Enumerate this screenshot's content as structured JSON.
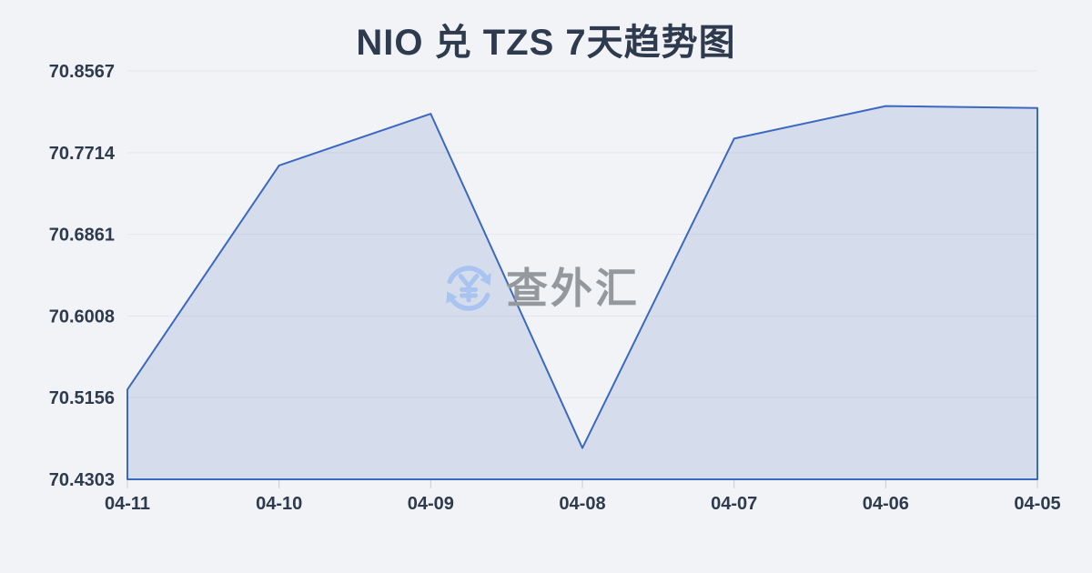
{
  "page": {
    "title": "NIO 兑 TZS 7天趋势图",
    "background_color": "#f1f3f6",
    "title_color": "#2e3a4e"
  },
  "watermark": {
    "icon": "currency-exchange-refresh-icon",
    "text": "查外汇",
    "icon_color": "#a9c4f0",
    "text_color": "#95989d"
  },
  "chart_data": {
    "type": "area",
    "title": "NIO 兑 TZS 7天趋势图",
    "categories": [
      "04-11",
      "04-10",
      "04-09",
      "04-08",
      "04-07",
      "04-06",
      "04-05"
    ],
    "values": [
      70.524,
      70.758,
      70.812,
      70.463,
      70.786,
      70.82,
      70.818
    ],
    "y_ticks": [
      "70.4303",
      "70.5156",
      "70.6008",
      "70.6861",
      "70.7714",
      "70.8567"
    ],
    "ylim": [
      70.4303,
      70.8567
    ],
    "xlabel": "",
    "ylabel": "",
    "grid": true,
    "legend": "none",
    "line_color": "#3c68c0",
    "fill_color": "#4e70be",
    "fill_opacity": 0.17,
    "gridline_color": "#e3e6eb",
    "tick_color": "#c9cdd4",
    "axis_label_color": "#2e3a4e"
  }
}
